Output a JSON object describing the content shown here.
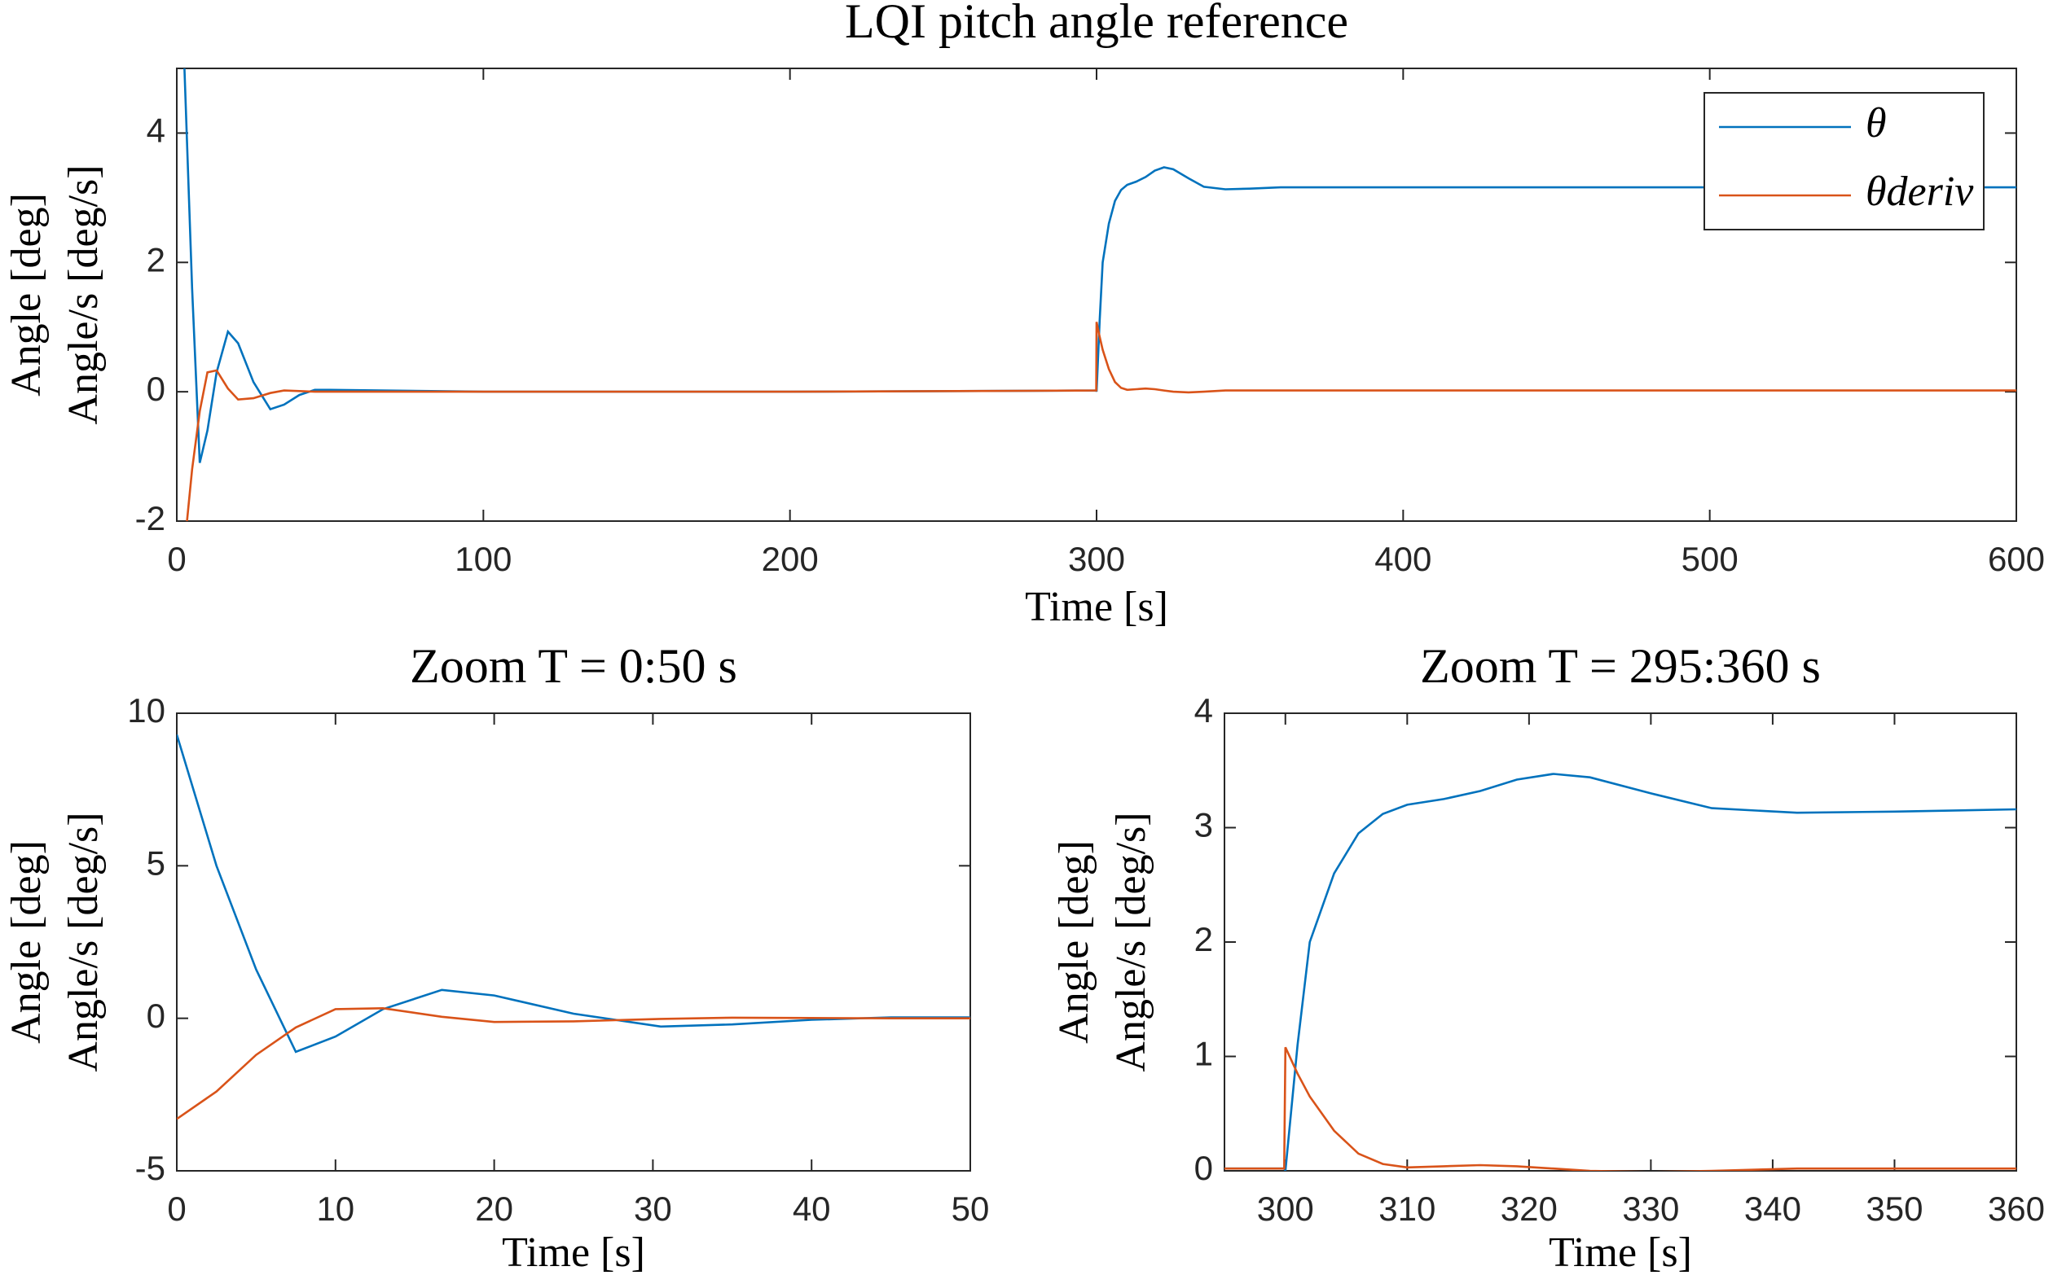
{
  "chart_data": [
    {
      "type": "line",
      "title": "LQI pitch angle reference",
      "xlabel": "Time [s]",
      "ylabel": [
        "Angle [deg]",
        "Angle/s [deg/s]"
      ],
      "x": [
        0,
        2.5,
        5,
        7.5,
        10,
        13,
        16.7,
        20,
        25,
        30.5,
        35,
        40,
        45,
        50,
        100,
        200,
        299.9,
        300,
        301,
        302,
        304,
        306,
        308,
        310,
        313,
        316,
        319,
        322,
        325,
        330,
        335,
        342,
        350,
        360,
        400,
        500,
        600
      ],
      "series": [
        {
          "name": "θ",
          "color": "#0072bd",
          "values": [
            9.3,
            5.0,
            1.6,
            -1.1,
            -0.6,
            0.3,
            0.93,
            0.75,
            0.15,
            -0.27,
            -0.2,
            -0.05,
            0.03,
            0.03,
            0,
            0,
            0.02,
            0,
            1.1,
            2.0,
            2.6,
            2.95,
            3.12,
            3.2,
            3.25,
            3.32,
            3.42,
            3.47,
            3.44,
            3.3,
            3.17,
            3.13,
            3.14,
            3.16,
            3.16,
            3.16,
            3.16
          ]
        },
        {
          "name": "θderiv",
          "color": "#d95319",
          "values": [
            -3.3,
            -2.4,
            -1.2,
            -0.3,
            0.3,
            0.33,
            0.05,
            -0.12,
            -0.1,
            -0.02,
            0.02,
            0.01,
            0,
            0,
            0,
            0,
            0.02,
            1.08,
            0.85,
            0.65,
            0.35,
            0.15,
            0.06,
            0.03,
            0.04,
            0.05,
            0.04,
            0.02,
            0,
            -0.01,
            0,
            0.02,
            0.02,
            0.02,
            0.02,
            0.02,
            0.02
          ]
        }
      ],
      "xlim": [
        0,
        600
      ],
      "xticks": [
        0,
        100,
        200,
        300,
        400,
        500,
        600
      ],
      "ylim": [
        -2,
        5
      ],
      "yticks": [
        -2,
        0,
        2,
        4
      ],
      "legend": "upper right"
    },
    {
      "type": "line",
      "title": "Zoom T = 0:50 s",
      "xlabel": "Time [s]",
      "ylabel": [
        "Angle [deg]",
        "Angle/s [deg/s]"
      ],
      "x": [
        0,
        2.5,
        5,
        7.5,
        10,
        13,
        16.7,
        20,
        25,
        30.5,
        35,
        40,
        45,
        50
      ],
      "series": [
        {
          "color": "#0072bd",
          "values": [
            9.3,
            5.0,
            1.6,
            -1.1,
            -0.6,
            0.3,
            0.93,
            0.75,
            0.15,
            -0.27,
            -0.2,
            -0.05,
            0.03,
            0.03
          ]
        },
        {
          "color": "#d95319",
          "values": [
            -3.3,
            -2.4,
            -1.2,
            -0.3,
            0.3,
            0.33,
            0.05,
            -0.12,
            -0.1,
            -0.02,
            0.02,
            0.01,
            0,
            0
          ]
        }
      ],
      "xlim": [
        0,
        50
      ],
      "xticks": [
        0,
        10,
        20,
        30,
        40,
        50
      ],
      "ylim": [
        -5,
        10
      ],
      "yticks": [
        -5,
        0,
        5,
        10
      ]
    },
    {
      "type": "line",
      "title": "Zoom T = 295:360 s",
      "xlabel": "Time [s]",
      "ylabel": [
        "Angle [deg]",
        "Angle/s [deg/s]"
      ],
      "x": [
        295,
        299.9,
        300,
        301,
        302,
        304,
        306,
        308,
        310,
        313,
        316,
        319,
        322,
        325,
        330,
        335,
        342,
        350,
        360
      ],
      "series": [
        {
          "color": "#0072bd",
          "values": [
            0.02,
            0.02,
            0,
            1.1,
            2.0,
            2.6,
            2.95,
            3.12,
            3.2,
            3.25,
            3.32,
            3.42,
            3.47,
            3.44,
            3.3,
            3.17,
            3.13,
            3.14,
            3.16
          ]
        },
        {
          "color": "#d95319",
          "values": [
            0.02,
            0.02,
            1.08,
            0.85,
            0.65,
            0.35,
            0.15,
            0.06,
            0.03,
            0.04,
            0.05,
            0.04,
            0.02,
            0,
            -0.01,
            0,
            0.02,
            0.02,
            0.02
          ]
        }
      ],
      "xlim": [
        295,
        360
      ],
      "xticks": [
        300,
        310,
        320,
        330,
        340,
        350,
        360
      ],
      "ylim": [
        0,
        4
      ],
      "yticks": [
        0,
        1,
        2,
        3,
        4
      ]
    }
  ]
}
